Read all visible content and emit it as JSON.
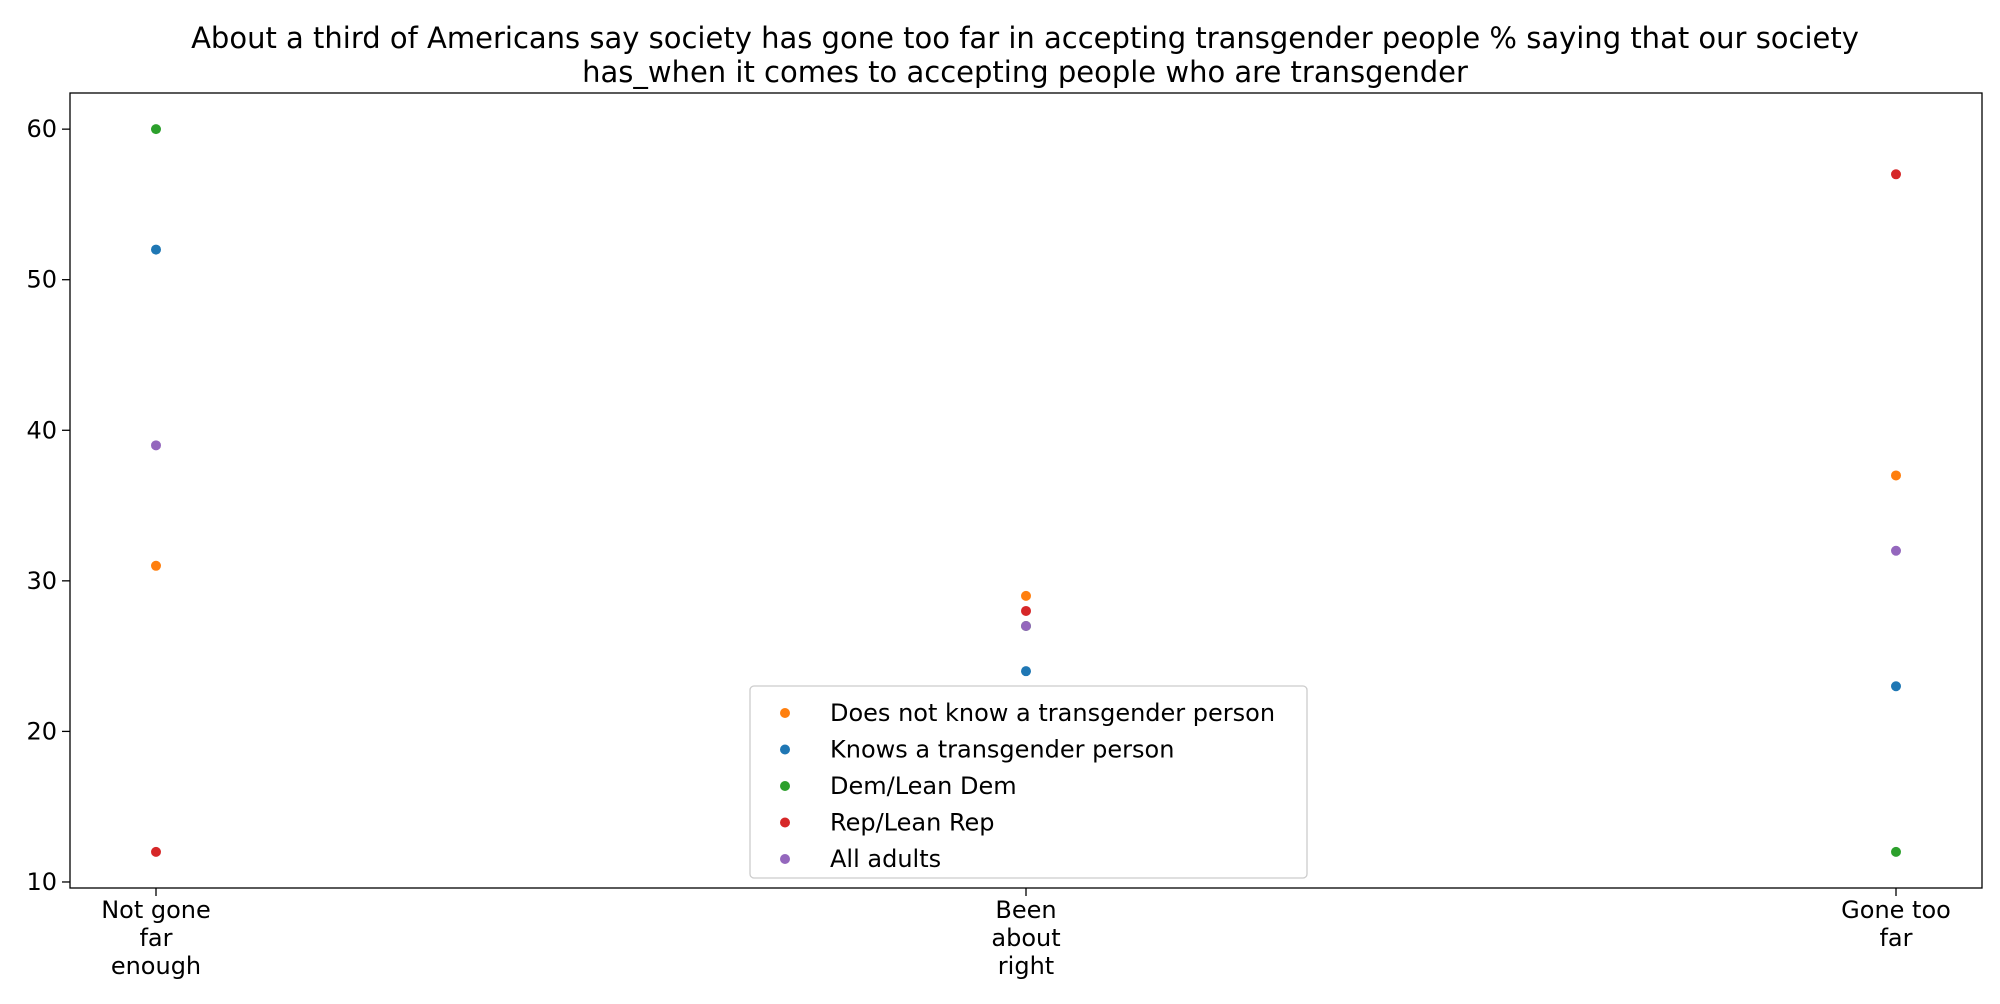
{
  "chart_data": {
    "type": "scatter",
    "title_lines": [
      "About a third of Americans say society has gone too far in accepting transgender people % saying that our society",
      "has_when it comes to accepting people who are transgender"
    ],
    "categories": [
      [
        "Not gone",
        "far",
        "enough"
      ],
      [
        "Been",
        "about",
        "right"
      ],
      [
        "Gone too",
        "far"
      ]
    ],
    "yticks": [
      10,
      20,
      30,
      40,
      50,
      60
    ],
    "ylim": [
      9.6,
      62.4
    ],
    "grid": false,
    "legend_position": "lower-center",
    "series": [
      {
        "name": "Does not know a transgender person",
        "color": "#ff7f0e",
        "values": [
          31,
          29,
          37
        ]
      },
      {
        "name": "Knows a transgender person",
        "color": "#1f77b4",
        "values": [
          52,
          24,
          23
        ]
      },
      {
        "name": "Dem/Lean Dem",
        "color": "#2ca02c",
        "values": [
          60,
          27,
          12
        ]
      },
      {
        "name": "Rep/Lean Rep",
        "color": "#d62728",
        "values": [
          12,
          28,
          57
        ]
      },
      {
        "name": "All adults",
        "color": "#9467bd",
        "values": [
          39,
          27,
          32
        ]
      }
    ]
  }
}
